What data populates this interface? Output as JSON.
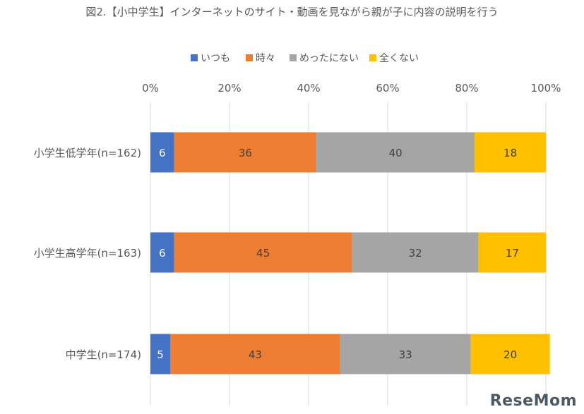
{
  "title": "図2.【小中学生】インターネットのサイト・動画を見ながら親が子に内容の説明を行う",
  "logo": "ReseMom",
  "chart_data": {
    "type": "bar",
    "orientation": "horizontal",
    "stacked": true,
    "xlim": [
      0,
      100
    ],
    "ticks": [
      "0%",
      "20%",
      "40%",
      "60%",
      "80%",
      "100%"
    ],
    "tick_values": [
      0,
      20,
      40,
      60,
      80,
      100
    ],
    "categories": [
      "小学生低学年(n=162)",
      "小学生高学年(n=163)",
      "中学生(n=174)"
    ],
    "legend_position": "top",
    "grid": true,
    "series": [
      {
        "name": "いつも",
        "color": "#4472C4",
        "values": [
          6,
          6,
          5
        ]
      },
      {
        "name": "時々",
        "color": "#ED7D31",
        "values": [
          36,
          45,
          43
        ]
      },
      {
        "name": "めったにない",
        "color": "#A5A5A5",
        "values": [
          40,
          32,
          33
        ]
      },
      {
        "name": "全くない",
        "color": "#FFC000",
        "values": [
          18,
          17,
          20
        ]
      }
    ]
  }
}
